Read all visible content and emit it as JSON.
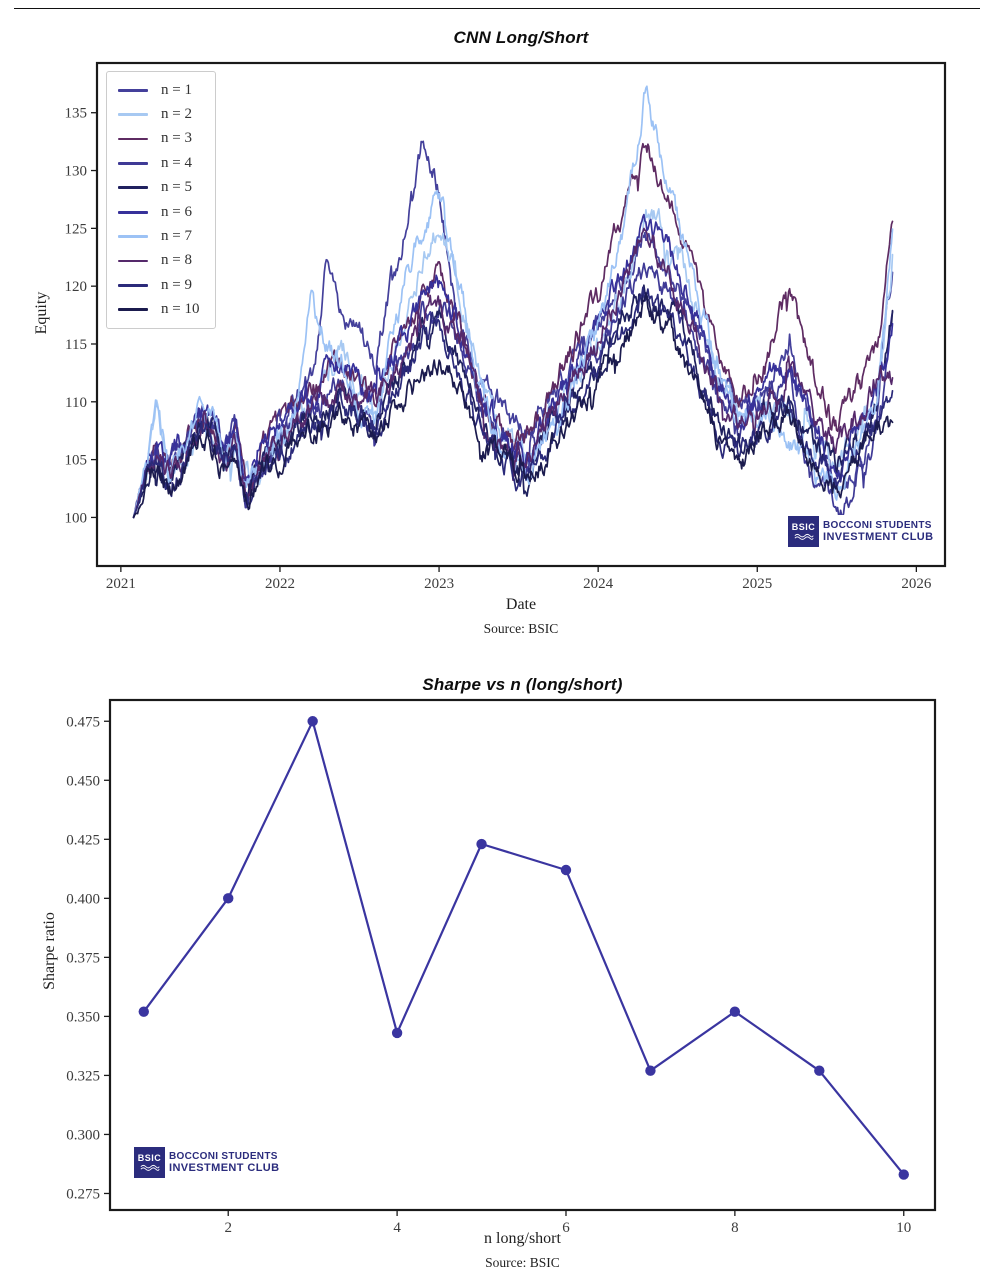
{
  "page": {
    "background": "#ffffff"
  },
  "logo": {
    "abbr": "BSIC",
    "line1": "BOCCONI STUDENTS",
    "line2": "INVESTMENT CLUB",
    "color": "#2b2c7d"
  },
  "chart_data": [
    {
      "type": "line",
      "title": "CNN Long/Short",
      "xlabel": "Date",
      "ylabel": "Equity",
      "caption": "Source: BSIC",
      "legend_position": "upper left",
      "grid": false,
      "xlim": [
        2020.85,
        2026.18
      ],
      "ylim": [
        95.8,
        139.3
      ],
      "x_ticks": [
        2021,
        2022,
        2023,
        2024,
        2025,
        2026
      ],
      "y_ticks": [
        100,
        105,
        110,
        115,
        120,
        125,
        130,
        135
      ],
      "x": [
        2021.08,
        2021.17,
        2021.22,
        2021.3,
        2021.4,
        2021.5,
        2021.58,
        2021.65,
        2021.72,
        2021.78,
        2021.88,
        2022.0,
        2022.1,
        2022.2,
        2022.3,
        2022.4,
        2022.5,
        2022.6,
        2022.7,
        2022.8,
        2022.9,
        2023.0,
        2023.1,
        2023.25,
        2023.4,
        2023.55,
        2023.7,
        2023.85,
        2024.0,
        2024.15,
        2024.3,
        2024.45,
        2024.6,
        2024.75,
        2024.9,
        2025.05,
        2025.2,
        2025.35,
        2025.5,
        2025.65,
        2025.75,
        2025.85
      ],
      "series": [
        {
          "name": "n = 1",
          "color": "#44409b",
          "values": [
            100,
            105,
            106,
            104.5,
            106.5,
            109,
            108,
            105.5,
            107.5,
            102,
            105,
            107.5,
            110,
            112,
            122,
            115.5,
            116.5,
            113.5,
            120,
            126,
            133,
            128.5,
            118,
            112,
            109,
            107,
            110.5,
            113.5,
            116.5,
            120.5,
            124,
            122,
            117,
            112,
            109.5,
            112.5,
            114.5,
            108,
            101.5,
            104.5,
            108,
            121
          ]
        },
        {
          "name": "n = 2",
          "color": "#a7c9f2",
          "values": [
            100,
            104.5,
            110,
            104,
            105.5,
            108.5,
            107.5,
            105,
            106.5,
            102.5,
            104.5,
            106.5,
            108.5,
            111,
            112.5,
            114,
            110,
            109,
            113.5,
            118,
            122.5,
            125,
            121.5,
            112,
            107,
            104.5,
            109,
            112.5,
            115.5,
            119.5,
            127,
            124,
            119,
            112.5,
            108,
            110,
            109,
            106,
            104.5,
            107.5,
            110.5,
            123
          ]
        },
        {
          "name": "n = 3",
          "color": "#5e2b62",
          "values": [
            100,
            104.5,
            105.5,
            104,
            106,
            108.5,
            107.5,
            105.5,
            107,
            103,
            105.5,
            108,
            109.5,
            111,
            112.5,
            113,
            111.5,
            110.5,
            114,
            117,
            120,
            121,
            118,
            111,
            107.5,
            106,
            111,
            115,
            119,
            126,
            133,
            127,
            121,
            114,
            110,
            113,
            119.5,
            112,
            108,
            111,
            114,
            125
          ]
        },
        {
          "name": "n = 4",
          "color": "#3f3a96",
          "values": [
            100,
            104.5,
            105.5,
            104,
            106,
            108.5,
            107.5,
            105,
            107,
            102,
            104.5,
            106.5,
            108,
            109,
            110.5,
            111.5,
            110,
            109,
            112,
            114,
            117.5,
            118.5,
            116,
            110,
            106.5,
            104.5,
            108.5,
            111.5,
            114.5,
            118.5,
            122,
            119.5,
            115,
            110,
            107.5,
            110.5,
            112,
            103,
            100.5,
            104,
            107,
            116
          ]
        },
        {
          "name": "n = 5",
          "color": "#20215f",
          "values": [
            100,
            104,
            105,
            103.5,
            105.5,
            108.5,
            107.5,
            105,
            106.5,
            101.5,
            104,
            106,
            107.5,
            108.5,
            109.5,
            110.5,
            109,
            108,
            111,
            113,
            116,
            117,
            114.5,
            108.5,
            105.5,
            104,
            107.5,
            110.5,
            113,
            117,
            120,
            118,
            113.5,
            108.5,
            106.5,
            109,
            110.5,
            106.5,
            104.5,
            107.5,
            110,
            117.5
          ]
        },
        {
          "name": "n = 6",
          "color": "#37319a",
          "values": [
            100,
            105,
            106.5,
            104.5,
            106.5,
            109.5,
            108.5,
            106,
            107.5,
            102.5,
            105,
            107.5,
            109.5,
            111,
            112,
            113.5,
            111.5,
            110,
            113.5,
            116,
            119,
            120,
            117,
            110.5,
            107,
            105.5,
            109.5,
            113,
            116.5,
            121,
            126,
            123,
            117.5,
            111.5,
            108.5,
            112,
            113.5,
            109,
            103,
            108,
            110.5,
            116
          ]
        },
        {
          "name": "n = 7",
          "color": "#9cc2f5",
          "values": [
            100,
            105,
            110.5,
            104.5,
            106,
            109.5,
            108,
            105.5,
            107,
            103,
            105,
            107,
            110,
            118.5,
            115,
            113,
            109.5,
            108.5,
            115,
            121,
            125,
            128,
            122,
            111,
            106,
            103.5,
            108,
            112,
            116,
            124,
            137,
            128,
            121,
            113,
            108.5,
            109.5,
            107,
            104,
            102.5,
            106,
            110,
            124
          ]
        },
        {
          "name": "n = 8",
          "color": "#55296b",
          "values": [
            100,
            104,
            105,
            103.5,
            105.5,
            108,
            107,
            105,
            106.5,
            102.5,
            104.5,
            106.5,
            108,
            109.5,
            110.5,
            111,
            110,
            109.5,
            112,
            114.5,
            117,
            118,
            115.5,
            109.5,
            106.5,
            105,
            109,
            112,
            115,
            120,
            125,
            121,
            116,
            110.5,
            108,
            110,
            112,
            108.5,
            106,
            109,
            112,
            112.5
          ]
        },
        {
          "name": "n = 9",
          "color": "#2b2a7a",
          "values": [
            100,
            103.5,
            104.5,
            103,
            105,
            107.5,
            106.5,
            104.5,
            106,
            101.5,
            103.5,
            105.5,
            107,
            108,
            109,
            110,
            108.5,
            107.5,
            110.5,
            112.5,
            115,
            116,
            113.5,
            108,
            105,
            103.5,
            107,
            110,
            112.5,
            116,
            119,
            117,
            112.5,
            107.5,
            105.5,
            108,
            109.5,
            105.5,
            103.5,
            106.5,
            108.5,
            110
          ]
        },
        {
          "name": "n = 10",
          "color": "#1b1b4e",
          "values": [
            100,
            103,
            104,
            102.5,
            104.5,
            107,
            106,
            104,
            105.5,
            101,
            103,
            105,
            106.5,
            107.5,
            108.5,
            109,
            108,
            107,
            109.5,
            111,
            112,
            112.5,
            111,
            107,
            104.5,
            103,
            106,
            109,
            111.5,
            115,
            118,
            116,
            111.5,
            107,
            105,
            107.5,
            109,
            105,
            103,
            106,
            108,
            107.5
          ]
        }
      ],
      "render_noise": {
        "amplitude": 1.0,
        "seed": 41,
        "note": "deterministic jitter approximating daily volatility"
      }
    },
    {
      "type": "line",
      "title": "Sharpe vs n (long/short)",
      "xlabel": "n long/short",
      "ylabel": "Sharpe ratio",
      "caption": "Source: BSIC",
      "line_color": "#3a35a0",
      "marker": "circle",
      "grid": false,
      "xlim": [
        0.6,
        10.37
      ],
      "ylim": [
        0.268,
        0.484
      ],
      "x_ticks": [
        2,
        4,
        6,
        8,
        10
      ],
      "y_ticks": [
        0.275,
        0.3,
        0.325,
        0.35,
        0.375,
        0.4,
        0.425,
        0.45,
        0.475
      ],
      "x": [
        1,
        2,
        3,
        4,
        5,
        6,
        7,
        8,
        9,
        10
      ],
      "values": [
        0.352,
        0.4,
        0.475,
        0.343,
        0.423,
        0.412,
        0.327,
        0.352,
        0.327,
        0.283
      ]
    }
  ]
}
